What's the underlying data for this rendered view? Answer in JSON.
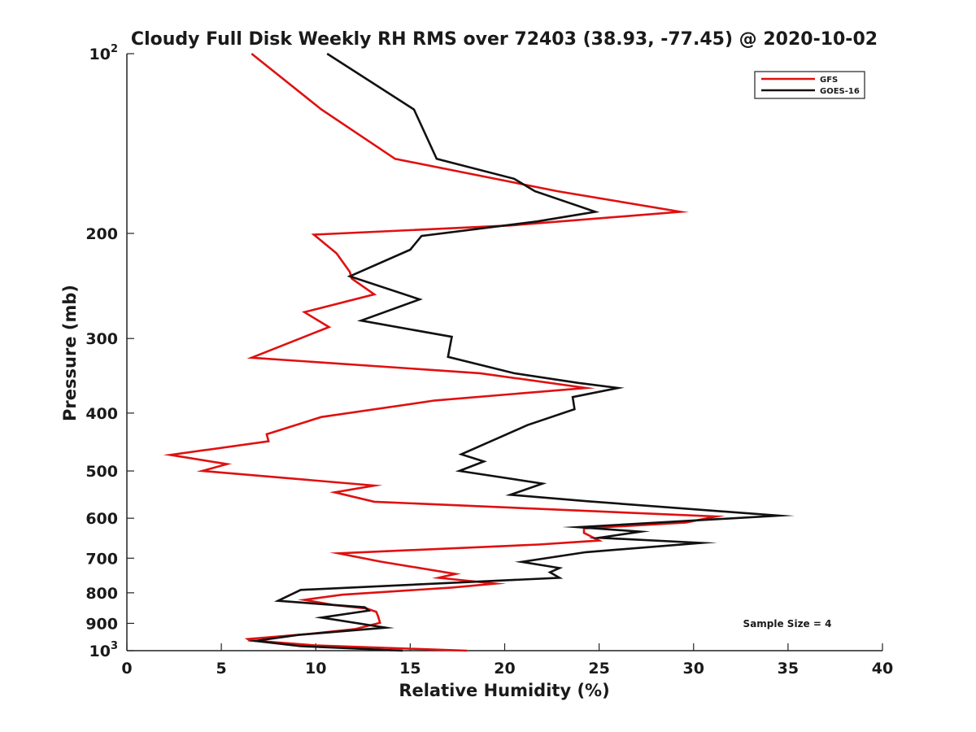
{
  "chart_data": {
    "type": "line",
    "title": "Cloudy Full Disk Weekly RH RMS over 72403 (38.93, -77.45) @ 2020-10-02",
    "xlabel": "Relative Humidity (%)",
    "ylabel": "Pressure (mb)",
    "xlim": [
      0,
      40
    ],
    "ylim": [
      100,
      1000
    ],
    "y_scale": "log",
    "y_reversed": true,
    "x_ticks": [
      0,
      5,
      10,
      15,
      20,
      25,
      30,
      35,
      40
    ],
    "x_tick_labels": [
      "0",
      "5",
      "10",
      "15",
      "20",
      "25",
      "30",
      "35",
      "40"
    ],
    "y_ticks": [
      100,
      200,
      300,
      400,
      500,
      600,
      700,
      800,
      900,
      1000
    ],
    "y_tick_labels": [
      "10^2",
      "200",
      "300",
      "400",
      "500",
      "600",
      "700",
      "800",
      "900",
      "10^3"
    ],
    "grid": false,
    "legend_position": "top-right",
    "annotation": "Sample Size = 4",
    "series": [
      {
        "name": "GFS",
        "color": "#e01010",
        "points": [
          [
            6.6,
            100
          ],
          [
            10.3,
            124
          ],
          [
            14.2,
            150
          ],
          [
            22.8,
            170
          ],
          [
            29.3,
            184
          ],
          [
            20.3,
            194
          ],
          [
            9.9,
            201
          ],
          [
            11.1,
            216
          ],
          [
            11.5,
            225
          ],
          [
            11.8,
            232
          ],
          [
            11.9,
            238
          ],
          [
            13.1,
            253
          ],
          [
            9.4,
            271
          ],
          [
            10.7,
            287
          ],
          [
            6.6,
            323
          ],
          [
            18.7,
            343
          ],
          [
            24.3,
            363
          ],
          [
            16.3,
            381
          ],
          [
            10.3,
            406
          ],
          [
            7.4,
            434
          ],
          [
            7.5,
            446
          ],
          [
            2.3,
            470
          ],
          [
            5.3,
            487
          ],
          [
            4.0,
            500
          ],
          [
            13.1,
            529
          ],
          [
            11.0,
            543
          ],
          [
            13.1,
            563
          ],
          [
            31.2,
            596
          ],
          [
            29.6,
            610
          ],
          [
            24.2,
            624
          ],
          [
            24.2,
            635
          ],
          [
            25.0,
            654
          ],
          [
            21.8,
            664
          ],
          [
            11.2,
            687
          ],
          [
            13.4,
            709
          ],
          [
            17.4,
            744
          ],
          [
            16.5,
            755
          ],
          [
            19.5,
            772
          ],
          [
            17.2,
            784
          ],
          [
            11.4,
            806
          ],
          [
            9.4,
            822
          ],
          [
            10.9,
            838
          ],
          [
            12.7,
            850
          ],
          [
            13.2,
            861
          ],
          [
            13.3,
            876
          ],
          [
            13.4,
            898
          ],
          [
            12.1,
            920
          ],
          [
            9.7,
            937
          ],
          [
            6.4,
            956
          ],
          [
            6.5,
            961
          ],
          [
            10.0,
            980
          ],
          [
            18.0,
            1000
          ]
        ]
      },
      {
        "name": "GOES-16",
        "color": "#111111",
        "points": [
          [
            10.6,
            100
          ],
          [
            15.2,
            124
          ],
          [
            16.4,
            150
          ],
          [
            20.5,
            162
          ],
          [
            21.6,
            170
          ],
          [
            24.8,
            184
          ],
          [
            21.7,
            191
          ],
          [
            15.6,
            202
          ],
          [
            15.0,
            213
          ],
          [
            11.8,
            236
          ],
          [
            15.5,
            258
          ],
          [
            12.4,
            280
          ],
          [
            17.2,
            298
          ],
          [
            17.0,
            322
          ],
          [
            20.5,
            343
          ],
          [
            23.9,
            356
          ],
          [
            26.0,
            363
          ],
          [
            23.6,
            376
          ],
          [
            23.7,
            394
          ],
          [
            21.2,
            419
          ],
          [
            19.9,
            437
          ],
          [
            17.7,
            469
          ],
          [
            18.9,
            482
          ],
          [
            17.6,
            500
          ],
          [
            22.0,
            525
          ],
          [
            20.3,
            548
          ],
          [
            24.4,
            562
          ],
          [
            34.5,
            594
          ],
          [
            23.9,
            621
          ],
          [
            27.2,
            632
          ],
          [
            25.0,
            647
          ],
          [
            30.4,
            660
          ],
          [
            24.3,
            684
          ],
          [
            20.9,
            710
          ],
          [
            22.9,
            727
          ],
          [
            22.4,
            739
          ],
          [
            22.9,
            755
          ],
          [
            9.2,
            791
          ],
          [
            8.0,
            825
          ],
          [
            12.6,
            846
          ],
          [
            12.8,
            857
          ],
          [
            10.3,
            880
          ],
          [
            13.7,
            915
          ],
          [
            9.1,
            941
          ],
          [
            6.8,
            963
          ],
          [
            9.2,
            983
          ],
          [
            14.6,
            1000
          ]
        ]
      }
    ]
  }
}
